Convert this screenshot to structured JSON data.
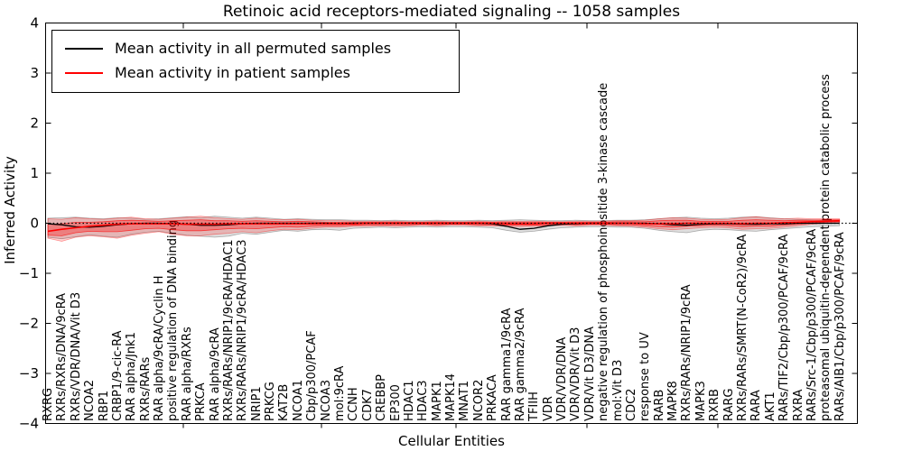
{
  "figure": {
    "title": "Retinoic acid receptors-mediated signaling -- 1058 samples"
  },
  "chart_data": {
    "type": "line",
    "title": "Retinoic acid receptors-mediated signaling -- 1058 samples",
    "xlabel": "Cellular Entities",
    "ylabel": "Inferred Activity",
    "ylim": [
      -4,
      4
    ],
    "yticks": [
      -4,
      -3,
      -2,
      -1,
      0,
      1,
      2,
      3,
      4
    ],
    "grid": false,
    "legend_position": "upper left",
    "categories": [
      "RXRG",
      "RXRs/RXRs/DNA/9cRA",
      "RXRs/VDR/DNA/Vit D3",
      "NCOA2",
      "RBP1",
      "CRBP1/9-cic-RA",
      "RAR alpha/Jnk1",
      "RXRs/RARs",
      "RAR alpha/9cRA/Cyclin H",
      "positive regulation of DNA binding",
      "RAR alpha/RXRs",
      "PRKCA",
      "RAR alpha/9cRA",
      "RXRs/RARs/NRIP1/9cRA/HDAC1",
      "RXRs/RARs/NRIP1/9cRA/HDAC3",
      "NRIP1",
      "PRKCG",
      "KAT2B",
      "NCOA1",
      "Cbp/p300/PCAF",
      "NCOA3",
      "mol:9cRA",
      "CCNH",
      "CDK7",
      "CREBBP",
      "EP300",
      "HDAC1",
      "HDAC3",
      "MAPK1",
      "MAPK14",
      "MNAT1",
      "NCOR2",
      "PRKACA",
      "RAR gamma1/9cRA",
      "RAR gamma2/9cRA",
      "TFIIH",
      "VDR",
      "VDR/VDR/DNA",
      "VDR/VDR/Vit D3",
      "VDR/Vit D3/DNA",
      "negative regulation of phosphoinositide 3-kinase cascade",
      "mol:Vit D3",
      "CDC2",
      "response to UV",
      "RARB",
      "MAPK8",
      "RXRs/RARs/NRIP1/9cRA",
      "MAPK3",
      "RXRB",
      "RARG",
      "RXRs/RARs/SMRT(N-CoR2)/9cRA",
      "RARA",
      "AKT1",
      "RARs/TIF2/Cbp/p300/PCAF/9cRA",
      "RXRA",
      "RARs/Src-1/Cbp/p300/PCAF/9cRA",
      "proteasomal ubiquitin-dependent protein catabolic process",
      "RARs/AIB1/Cbp/p300/PCAF/9cRA"
    ],
    "series": [
      {
        "name": "Mean activity in all permuted samples",
        "color": "#000000",
        "style": "solid",
        "values": [
          -0.01,
          -0.03,
          -0.07,
          -0.08,
          -0.06,
          -0.03,
          -0.01,
          0,
          0,
          -0.01,
          -0.02,
          -0.04,
          -0.04,
          -0.03,
          -0.01,
          0,
          0,
          0,
          0,
          0,
          0,
          -0.01,
          0,
          0,
          0,
          0,
          0,
          0,
          0,
          0,
          0,
          0,
          -0.01,
          -0.06,
          -0.12,
          -0.1,
          -0.05,
          -0.02,
          -0.01,
          0,
          0,
          0,
          0,
          0,
          -0.01,
          -0.03,
          -0.04,
          -0.02,
          -0.01,
          -0.01,
          -0.02,
          -0.02,
          -0.01,
          -0.01,
          0,
          0,
          0,
          0
        ]
      },
      {
        "name": "Mean activity in patient samples",
        "color": "#ff0000",
        "style": "solid",
        "values": [
          -0.16,
          -0.12,
          -0.09,
          -0.06,
          -0.04,
          -0.02,
          -0.01,
          -0.01,
          -0.01,
          -0.01,
          -0.02,
          -0.02,
          -0.02,
          -0.01,
          -0.01,
          -0.01,
          -0.01,
          -0.01,
          -0.01,
          -0.01,
          -0.01,
          -0.01,
          -0.01,
          0,
          0,
          0,
          0,
          0,
          0,
          0,
          0,
          0,
          0,
          -0.01,
          -0.01,
          -0.01,
          0,
          0,
          0,
          0,
          0,
          0,
          0,
          -0.01,
          -0.01,
          -0.01,
          0,
          0,
          0,
          0,
          -0.01,
          0,
          0,
          0.01,
          0.02,
          0.03,
          0.04,
          0.05
        ]
      }
    ],
    "bands": [
      {
        "name": "permuted-samples-activity-range",
        "color": "#000000",
        "opacity": 0.13,
        "upper": [
          0.1,
          0.11,
          0.12,
          0.1,
          0.09,
          0.11,
          0.1,
          0.08,
          0.09,
          0.11,
          0.13,
          0.11,
          0.14,
          0.12,
          0.1,
          0.12,
          0.1,
          0.08,
          0.09,
          0.08,
          0.07,
          0.07,
          0.06,
          0.06,
          0.05,
          0.06,
          0.05,
          0.05,
          0.06,
          0.05,
          0.05,
          0.06,
          0.05,
          0.06,
          0.07,
          0.06,
          0.05,
          0.05,
          0.06,
          0.05,
          0.05,
          0.06,
          0.06,
          0.07,
          0.09,
          0.11,
          0.12,
          0.1,
          0.09,
          0.1,
          0.12,
          0.13,
          0.11,
          0.09,
          0.08,
          0.07,
          0.06,
          0.06
        ],
        "lower": [
          -0.28,
          -0.31,
          -0.27,
          -0.23,
          -0.26,
          -0.28,
          -0.22,
          -0.18,
          -0.16,
          -0.2,
          -0.24,
          -0.26,
          -0.28,
          -0.26,
          -0.2,
          -0.22,
          -0.18,
          -0.14,
          -0.16,
          -0.13,
          -0.12,
          -0.14,
          -0.1,
          -0.09,
          -0.08,
          -0.09,
          -0.08,
          -0.07,
          -0.08,
          -0.07,
          -0.07,
          -0.08,
          -0.09,
          -0.14,
          -0.18,
          -0.16,
          -0.12,
          -0.09,
          -0.08,
          -0.07,
          -0.07,
          -0.08,
          -0.08,
          -0.1,
          -0.14,
          -0.17,
          -0.19,
          -0.14,
          -0.12,
          -0.13,
          -0.15,
          -0.16,
          -0.13,
          -0.11,
          -0.09,
          -0.07,
          -0.06,
          -0.05
        ]
      },
      {
        "name": "patient-samples-activity-range-outer",
        "color": "#ff0000",
        "opacity": 0.18,
        "upper": [
          0.09,
          0.08,
          0.11,
          0.09,
          0.08,
          0.1,
          0.12,
          0.09,
          0.08,
          0.1,
          0.12,
          0.14,
          0.11,
          0.09,
          0.08,
          0.1,
          0.08,
          0.07,
          0.08,
          0.06,
          0.05,
          0.05,
          0.04,
          0.04,
          0.04,
          0.04,
          0.03,
          0.03,
          0.04,
          0.03,
          0.03,
          0.04,
          0.03,
          0.04,
          0.04,
          0.04,
          0.03,
          0.03,
          0.04,
          0.04,
          0.04,
          0.05,
          0.05,
          0.06,
          0.09,
          0.11,
          0.1,
          0.08,
          0.07,
          0.08,
          0.11,
          0.13,
          0.1,
          0.09,
          0.1,
          0.09,
          0.09,
          0.09
        ],
        "lower": [
          -0.3,
          -0.36,
          -0.28,
          -0.25,
          -0.27,
          -0.3,
          -0.24,
          -0.2,
          -0.17,
          -0.22,
          -0.25,
          -0.25,
          -0.22,
          -0.2,
          -0.17,
          -0.19,
          -0.15,
          -0.12,
          -0.13,
          -0.1,
          -0.08,
          -0.08,
          -0.06,
          -0.06,
          -0.05,
          -0.06,
          -0.05,
          -0.04,
          -0.05,
          -0.04,
          -0.04,
          -0.05,
          -0.05,
          -0.06,
          -0.07,
          -0.06,
          -0.05,
          -0.04,
          -0.05,
          -0.04,
          -0.04,
          -0.05,
          -0.06,
          -0.08,
          -0.11,
          -0.13,
          -0.11,
          -0.09,
          -0.08,
          -0.09,
          -0.12,
          -0.11,
          -0.1,
          -0.08,
          -0.05,
          -0.02,
          0,
          0.01
        ]
      },
      {
        "name": "patient-samples-activity-range-inner",
        "color": "#ff0000",
        "opacity": 0.3,
        "upper": [
          -0.02,
          -0.01,
          0.02,
          0.02,
          0.03,
          0.05,
          0.06,
          0.05,
          0.04,
          0.05,
          0.06,
          0.07,
          0.05,
          0.05,
          0.04,
          0.05,
          0.04,
          0.03,
          0.04,
          0.03,
          0.02,
          0.02,
          0.02,
          0.02,
          0.02,
          0.02,
          0.02,
          0.02,
          0.02,
          0.02,
          0.02,
          0.02,
          0.02,
          0.02,
          0.02,
          0.02,
          0.02,
          0.02,
          0.02,
          0.02,
          0.02,
          0.03,
          0.03,
          0.03,
          0.05,
          0.06,
          0.06,
          0.04,
          0.04,
          0.04,
          0.06,
          0.07,
          0.06,
          0.05,
          0.06,
          0.06,
          0.07,
          0.07
        ],
        "lower": [
          -0.24,
          -0.25,
          -0.19,
          -0.16,
          -0.17,
          -0.17,
          -0.14,
          -0.11,
          -0.1,
          -0.13,
          -0.15,
          -0.15,
          -0.13,
          -0.11,
          -0.1,
          -0.11,
          -0.09,
          -0.07,
          -0.08,
          -0.06,
          -0.05,
          -0.05,
          -0.04,
          -0.03,
          -0.03,
          -0.03,
          -0.03,
          -0.02,
          -0.03,
          -0.02,
          -0.02,
          -0.03,
          -0.03,
          -0.04,
          -0.04,
          -0.04,
          -0.03,
          -0.02,
          -0.03,
          -0.02,
          -0.02,
          -0.03,
          -0.03,
          -0.05,
          -0.07,
          -0.08,
          -0.06,
          -0.05,
          -0.04,
          -0.05,
          -0.07,
          -0.06,
          -0.06,
          -0.04,
          -0.02,
          0,
          0.02,
          0.03
        ]
      }
    ],
    "zero_line": {
      "value": 0,
      "style": "dotted",
      "color": "#000000"
    }
  },
  "legend": {
    "items": [
      {
        "label": "Mean activity in all permuted samples",
        "color": "#000000"
      },
      {
        "label": "Mean activity in patient samples",
        "color": "#ff0000"
      }
    ]
  }
}
